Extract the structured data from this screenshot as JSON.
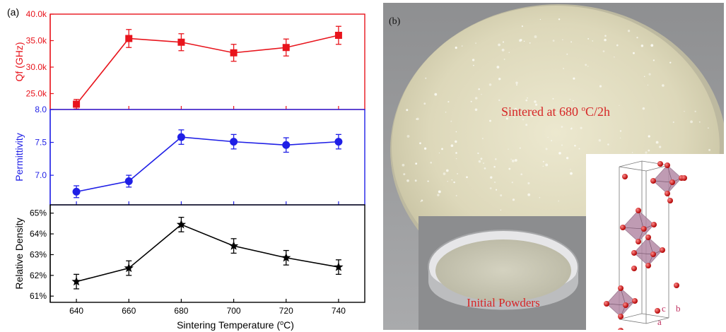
{
  "panel_a_label": "(a)",
  "panel_b_label": "(b)",
  "photo": {
    "sintered_label_prefix": "Sintered at 680 ",
    "sintered_label_sup": "o",
    "sintered_label_suffix": "C/2h",
    "powder_label": "Initial Powders",
    "crystal_axes": [
      "c",
      "b",
      "a"
    ]
  },
  "colors": {
    "qf": "#e8141c",
    "permittivity": "#1f1fe6",
    "density": "#000000",
    "photo_text": "#d62626"
  },
  "chart_data": [
    {
      "type": "line",
      "ylabel": "Qf (GHz)",
      "x": [
        640,
        660,
        680,
        700,
        720,
        740
      ],
      "series": [
        {
          "values": [
            23000,
            35400,
            34700,
            32700,
            33700,
            36000
          ],
          "errors": [
            900,
            1700,
            1600,
            1600,
            1600,
            1700
          ],
          "marker": "square"
        }
      ],
      "ylim": [
        22000,
        40000
      ],
      "yticks": [
        25000,
        30000,
        35000,
        40000
      ],
      "ytick_labels": [
        "25.0k",
        "30.0k",
        "35.0k",
        "40.0k"
      ]
    },
    {
      "type": "line",
      "ylabel": "Permittivity",
      "x": [
        640,
        660,
        680,
        700,
        720,
        740
      ],
      "series": [
        {
          "values": [
            6.75,
            6.91,
            7.58,
            7.51,
            7.46,
            7.51
          ],
          "errors": [
            0.09,
            0.09,
            0.11,
            0.11,
            0.11,
            0.11
          ],
          "marker": "circle"
        }
      ],
      "ylim": [
        6.55,
        8.0
      ],
      "yticks": [
        7.0,
        7.5,
        8.0
      ],
      "ytick_labels": [
        "7.0",
        "7.5",
        "8.0"
      ]
    },
    {
      "type": "line",
      "xlabel_prefix": "Sintering Temperature (",
      "xlabel_sup": "o",
      "xlabel_suffix": "C)",
      "ylabel": "Relative Density",
      "x": [
        640,
        660,
        680,
        700,
        720,
        740
      ],
      "series": [
        {
          "values": [
            61.7,
            62.35,
            64.45,
            63.42,
            62.85,
            62.4
          ],
          "errors": [
            0.35,
            0.35,
            0.35,
            0.35,
            0.35,
            0.35
          ],
          "marker": "star"
        }
      ],
      "xlim": [
        630,
        750
      ],
      "xticks": [
        640,
        660,
        680,
        700,
        720,
        740
      ],
      "ylim": [
        60.7,
        65.4
      ],
      "yticks": [
        61,
        62,
        63,
        64,
        65
      ],
      "ytick_labels": [
        "61%",
        "62%",
        "63%",
        "64%",
        "65%"
      ]
    }
  ]
}
